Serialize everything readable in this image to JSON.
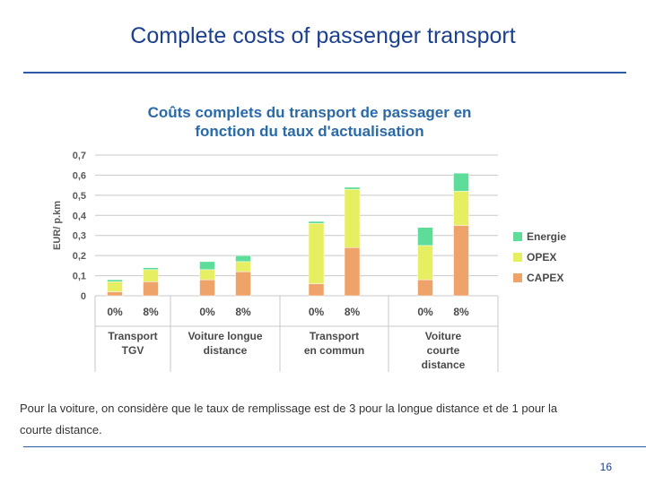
{
  "slide": {
    "title": "Complete costs of passenger  transport",
    "footnote_line1": "Pour la voiture, on considère que le taux de remplissage est de 3 pour la longue distance et de 1 pour la",
    "footnote_line2": "courte distance.",
    "page_number": "16"
  },
  "colors": {
    "title": "#1c3f8f",
    "rule": "#2f5aa8",
    "energie": "#5edc9a",
    "opex": "#e6ee62",
    "capex": "#eea36a",
    "chart_title": "#2a6aa8"
  },
  "chart_data": {
    "type": "bar",
    "stacked": true,
    "title_line1": "Coûts complets du transport de passager en",
    "title_line2": "fonction du taux d'actualisation",
    "ylabel": "EUR/ p.km",
    "ylim": [
      0,
      0.7
    ],
    "yticks": [
      "0",
      "0,1",
      "0,2",
      "0,3",
      "0,4",
      "0,5",
      "0,6",
      "0,7"
    ],
    "groups": [
      {
        "label_lines": [
          "Transport",
          "TGV"
        ],
        "rates": [
          "0%",
          "8%"
        ]
      },
      {
        "label_lines": [
          "Voiture longue",
          "distance"
        ],
        "rates": [
          "0%",
          "8%"
        ]
      },
      {
        "label_lines": [
          "Transport",
          "en commun"
        ],
        "rates": [
          "0%",
          "8%"
        ]
      },
      {
        "label_lines": [
          "Voiture",
          "courte",
          "distance"
        ],
        "rates": [
          "0%",
          "8%"
        ]
      }
    ],
    "series": [
      {
        "name": "CAPEX",
        "values": [
          0.02,
          0.07,
          0.08,
          0.12,
          0.06,
          0.24,
          0.08,
          0.35
        ]
      },
      {
        "name": "OPEX",
        "values": [
          0.05,
          0.06,
          0.05,
          0.05,
          0.3,
          0.29,
          0.17,
          0.17
        ]
      },
      {
        "name": "Energie",
        "values": [
          0.01,
          0.01,
          0.04,
          0.03,
          0.01,
          0.01,
          0.09,
          0.09
        ]
      }
    ],
    "legend_order": [
      "Energie",
      "OPEX",
      "CAPEX"
    ]
  }
}
